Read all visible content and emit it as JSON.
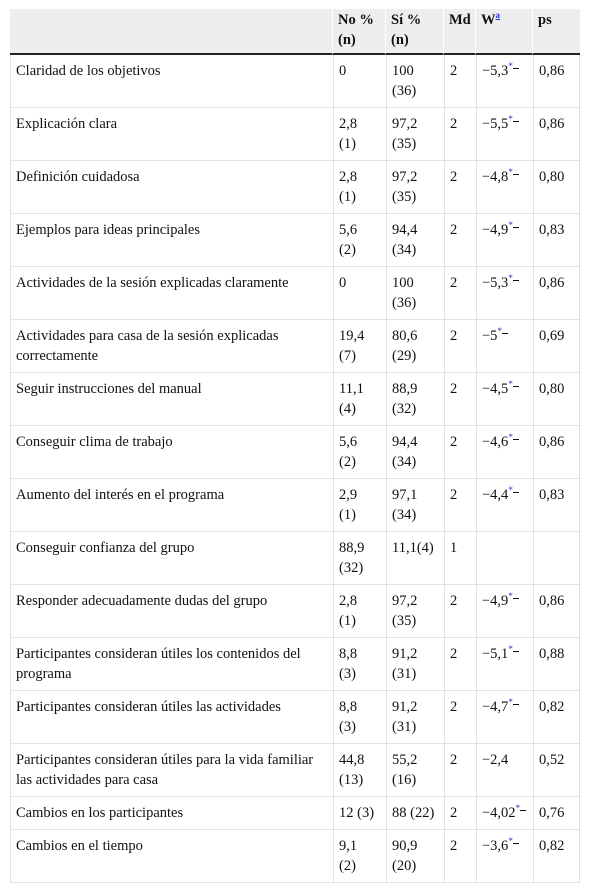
{
  "header": {
    "label": "",
    "no_pct": "No %",
    "no_n": "(n)",
    "si_pct": "Sí %",
    "si_n": "(n)",
    "md": "Md",
    "w": "W",
    "w_note": "a",
    "ps": "ps"
  },
  "rows": [
    {
      "label": "Claridad de los objetivos",
      "no1": "0",
      "no2": "",
      "si1": "100",
      "si2": "(36)",
      "md": "2",
      "w": "−5,3",
      "sig": "*",
      "ps": "0,86"
    },
    {
      "label": "Explicación clara",
      "no1": "2,8",
      "no2": "(1)",
      "si1": "97,2",
      "si2": "(35)",
      "md": "2",
      "w": "−5,5",
      "sig": "*",
      "ps": "0,86"
    },
    {
      "label": "Definición cuidadosa",
      "no1": "2,8",
      "no2": "(1)",
      "si1": "97,2",
      "si2": "(35)",
      "md": "2",
      "w": "−4,8",
      "sig": "*",
      "ps": "0,80"
    },
    {
      "label": "Ejemplos para ideas principales",
      "no1": "5,6",
      "no2": "(2)",
      "si1": "94,4",
      "si2": "(34)",
      "md": "2",
      "w": "−4,9",
      "sig": "*",
      "ps": "0,83"
    },
    {
      "label": "Actividades de la sesión explicadas claramente",
      "no1": "0",
      "no2": "",
      "si1": "100",
      "si2": "(36)",
      "md": "2",
      "w": "−5,3",
      "sig": "*",
      "ps": "0,86"
    },
    {
      "label": "Actividades para casa de la sesión explicadas correctamente",
      "no1": "19,4",
      "no2": "(7)",
      "si1": "80,6",
      "si2": "(29)",
      "md": "2",
      "w": "−5",
      "sig": "*",
      "ps": "0,69"
    },
    {
      "label": "Seguir instrucciones del manual",
      "no1": "11,1",
      "no2": "(4)",
      "si1": "88,9",
      "si2": "(32)",
      "md": "2",
      "w": "−4,5",
      "sig": "*",
      "ps": "0,80"
    },
    {
      "label": "Conseguir clima de trabajo",
      "no1": "5,6",
      "no2": "(2)",
      "si1": "94,4",
      "si2": "(34)",
      "md": "2",
      "w": "−4,6",
      "sig": "*",
      "ps": "0,86"
    },
    {
      "label": "Aumento del interés en el programa",
      "no1": "2,9",
      "no2": "(1)",
      "si1": "97,1",
      "si2": "(34)",
      "md": "2",
      "w": "−4,4",
      "sig": "*",
      "ps": "0,83"
    },
    {
      "label": "Conseguir confianza del grupo",
      "no1": "88,9",
      "no2": "(32)",
      "si1": "11,1(4)",
      "si2": "",
      "md": "1",
      "w": "",
      "sig": "",
      "ps": ""
    },
    {
      "label": "Responder adecuadamente dudas del grupo",
      "no1": "2,8",
      "no2": "(1)",
      "si1": "97,2",
      "si2": "(35)",
      "md": "2",
      "w": "−4,9",
      "sig": "*",
      "ps": "0,86"
    },
    {
      "label": "Participantes consideran útiles los contenidos del programa",
      "no1": "8,8",
      "no2": "(3)",
      "si1": "91,2",
      "si2": "(31)",
      "md": "2",
      "w": "−5,1",
      "sig": "*",
      "ps": "0,88"
    },
    {
      "label": "Participantes consideran útiles las actividades",
      "no1": "8,8",
      "no2": "(3)",
      "si1": "91,2",
      "si2": "(31)",
      "md": "2",
      "w": "−4,7",
      "sig": "*",
      "ps": "0,82"
    },
    {
      "label": "Participantes consideran útiles para la vida familiar las actividades para casa",
      "no1": "44,8",
      "no2": "(13)",
      "si1": "55,2",
      "si2": "(16)",
      "md": "2",
      "w": "−2,4",
      "sig": "",
      "ps": "0,52"
    },
    {
      "label": "Cambios en los participantes",
      "no1": "12 (3)",
      "no2": "",
      "si1": "88 (22)",
      "si2": "",
      "md": "2",
      "w": "−4,02",
      "sig": "*",
      "ps": "0,76"
    },
    {
      "label": "Cambios en el tiempo",
      "no1": "9,1",
      "no2": "(2)",
      "si1": "90,9",
      "si2": "(20)",
      "md": "2",
      "w": "−3,6",
      "sig": "*",
      "ps": "0,82"
    }
  ]
}
